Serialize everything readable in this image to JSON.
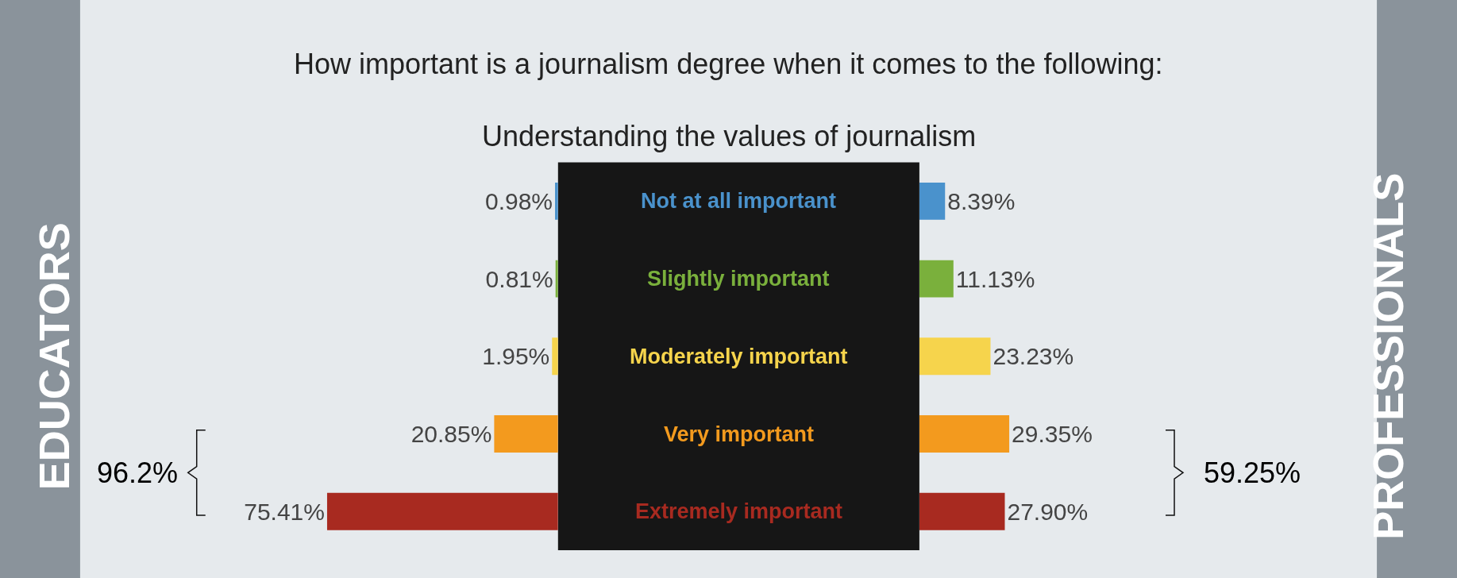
{
  "chart_data": [
    {
      "type": "bar",
      "orientation": "horizontal",
      "title": "How important is a journalism degree when it comes to the following:",
      "subtitle": "Understanding the values of journalism",
      "ylabel": "EDUCATORS",
      "categories": [
        "Not at all important",
        "Slightly important",
        "Moderately important",
        "Very important",
        "Extremely important"
      ],
      "values": [
        0.98,
        0.81,
        1.95,
        20.85,
        75.41
      ],
      "value_labels": [
        "0.98%",
        "0.81%",
        "1.95%",
        "20.85%",
        "75.41%"
      ],
      "colors": [
        "#4a92cc",
        "#7ab03c",
        "#f6d44c",
        "#f39a1e",
        "#a82a20"
      ],
      "tick_labels": "y",
      "annotations": [
        "96.2%"
      ]
    },
    {
      "type": "bar",
      "orientation": "horizontal",
      "ylabel": "PROFESSIONALS",
      "categories": [
        null,
        null,
        null,
        null,
        null
      ],
      "values": [
        8.39,
        11.13,
        23.23,
        29.35,
        27.9
      ],
      "value_labels": [
        "8.39%",
        "11.13%",
        "23.23%",
        "29.35%",
        "27.90%"
      ],
      "colors": [
        "#4a92cc",
        "#7ab03c",
        "#f6d44c",
        "#f39a1e",
        "#a82a20"
      ],
      "tick_labels": false,
      "annotations": [
        "59.25%"
      ]
    }
  ]
}
